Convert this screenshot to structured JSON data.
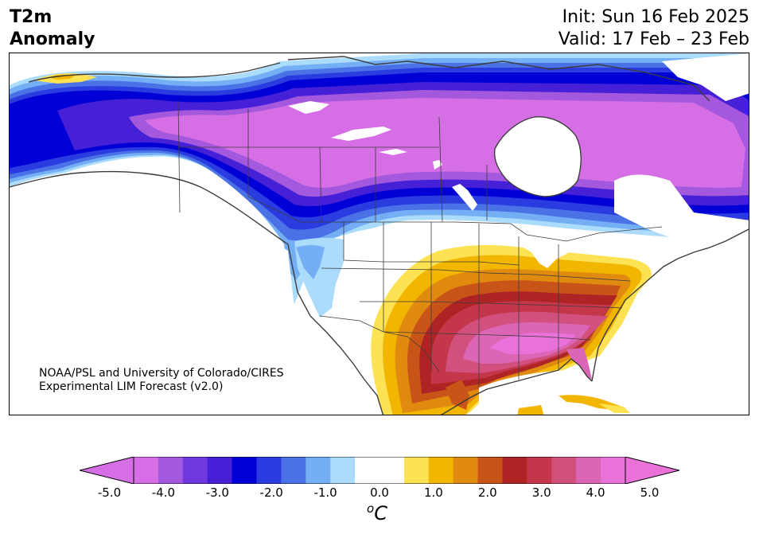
{
  "header": {
    "title_line1": "T2m",
    "title_line2": "Anomaly",
    "init_text": "Init: Sun 16 Feb 2025",
    "valid_text": "Valid: 17 Feb – 23 Feb"
  },
  "credit": {
    "line1": "NOAA/PSL and University of Colorado/CIRES",
    "line2": "Experimental LIM Forecast (v2.0)"
  },
  "colorbar": {
    "unit_base": "C",
    "unit_sup": "o",
    "ticks": [
      "-5.0",
      "-4.0",
      "-3.0",
      "-2.0",
      "-1.0",
      "0.0",
      "1.0",
      "2.0",
      "3.0",
      "4.0",
      "5.0"
    ],
    "colors": [
      "#d66fe6",
      "#a458de",
      "#7038e0",
      "#4620d6",
      "#0000d6",
      "#2a3ce0",
      "#4a72e6",
      "#74aef5",
      "#acdcfc",
      "#ffffff",
      "#ffffff",
      "#fde254",
      "#f2b600",
      "#e08a10",
      "#c85418",
      "#ae2424",
      "#c4364a",
      "#d1507e",
      "#dc66b6",
      "#e872da"
    ],
    "end_left_color": "#d66fe6",
    "end_right_color": "#e872da"
  },
  "map": {
    "palette": {
      "cold_max": "#d66fe6",
      "cold_4": "#a458de",
      "cold_3": "#4620d6",
      "cold_25": "#0000d6",
      "cold_2": "#2a3ce0",
      "cold_15": "#4a72e6",
      "cold_1": "#74aef5",
      "cold_05": "#acdcfc",
      "warm_05": "#fde254",
      "warm_1": "#f2b600",
      "warm_15": "#e08a10",
      "warm_2": "#c85418",
      "warm_25": "#ae2424",
      "warm_3": "#c4364a",
      "warm_35": "#d1507e",
      "warm_4": "#dc66b6",
      "warm_5": "#e872da",
      "coast": "#3c3c3c",
      "water": "#ffffff"
    }
  }
}
